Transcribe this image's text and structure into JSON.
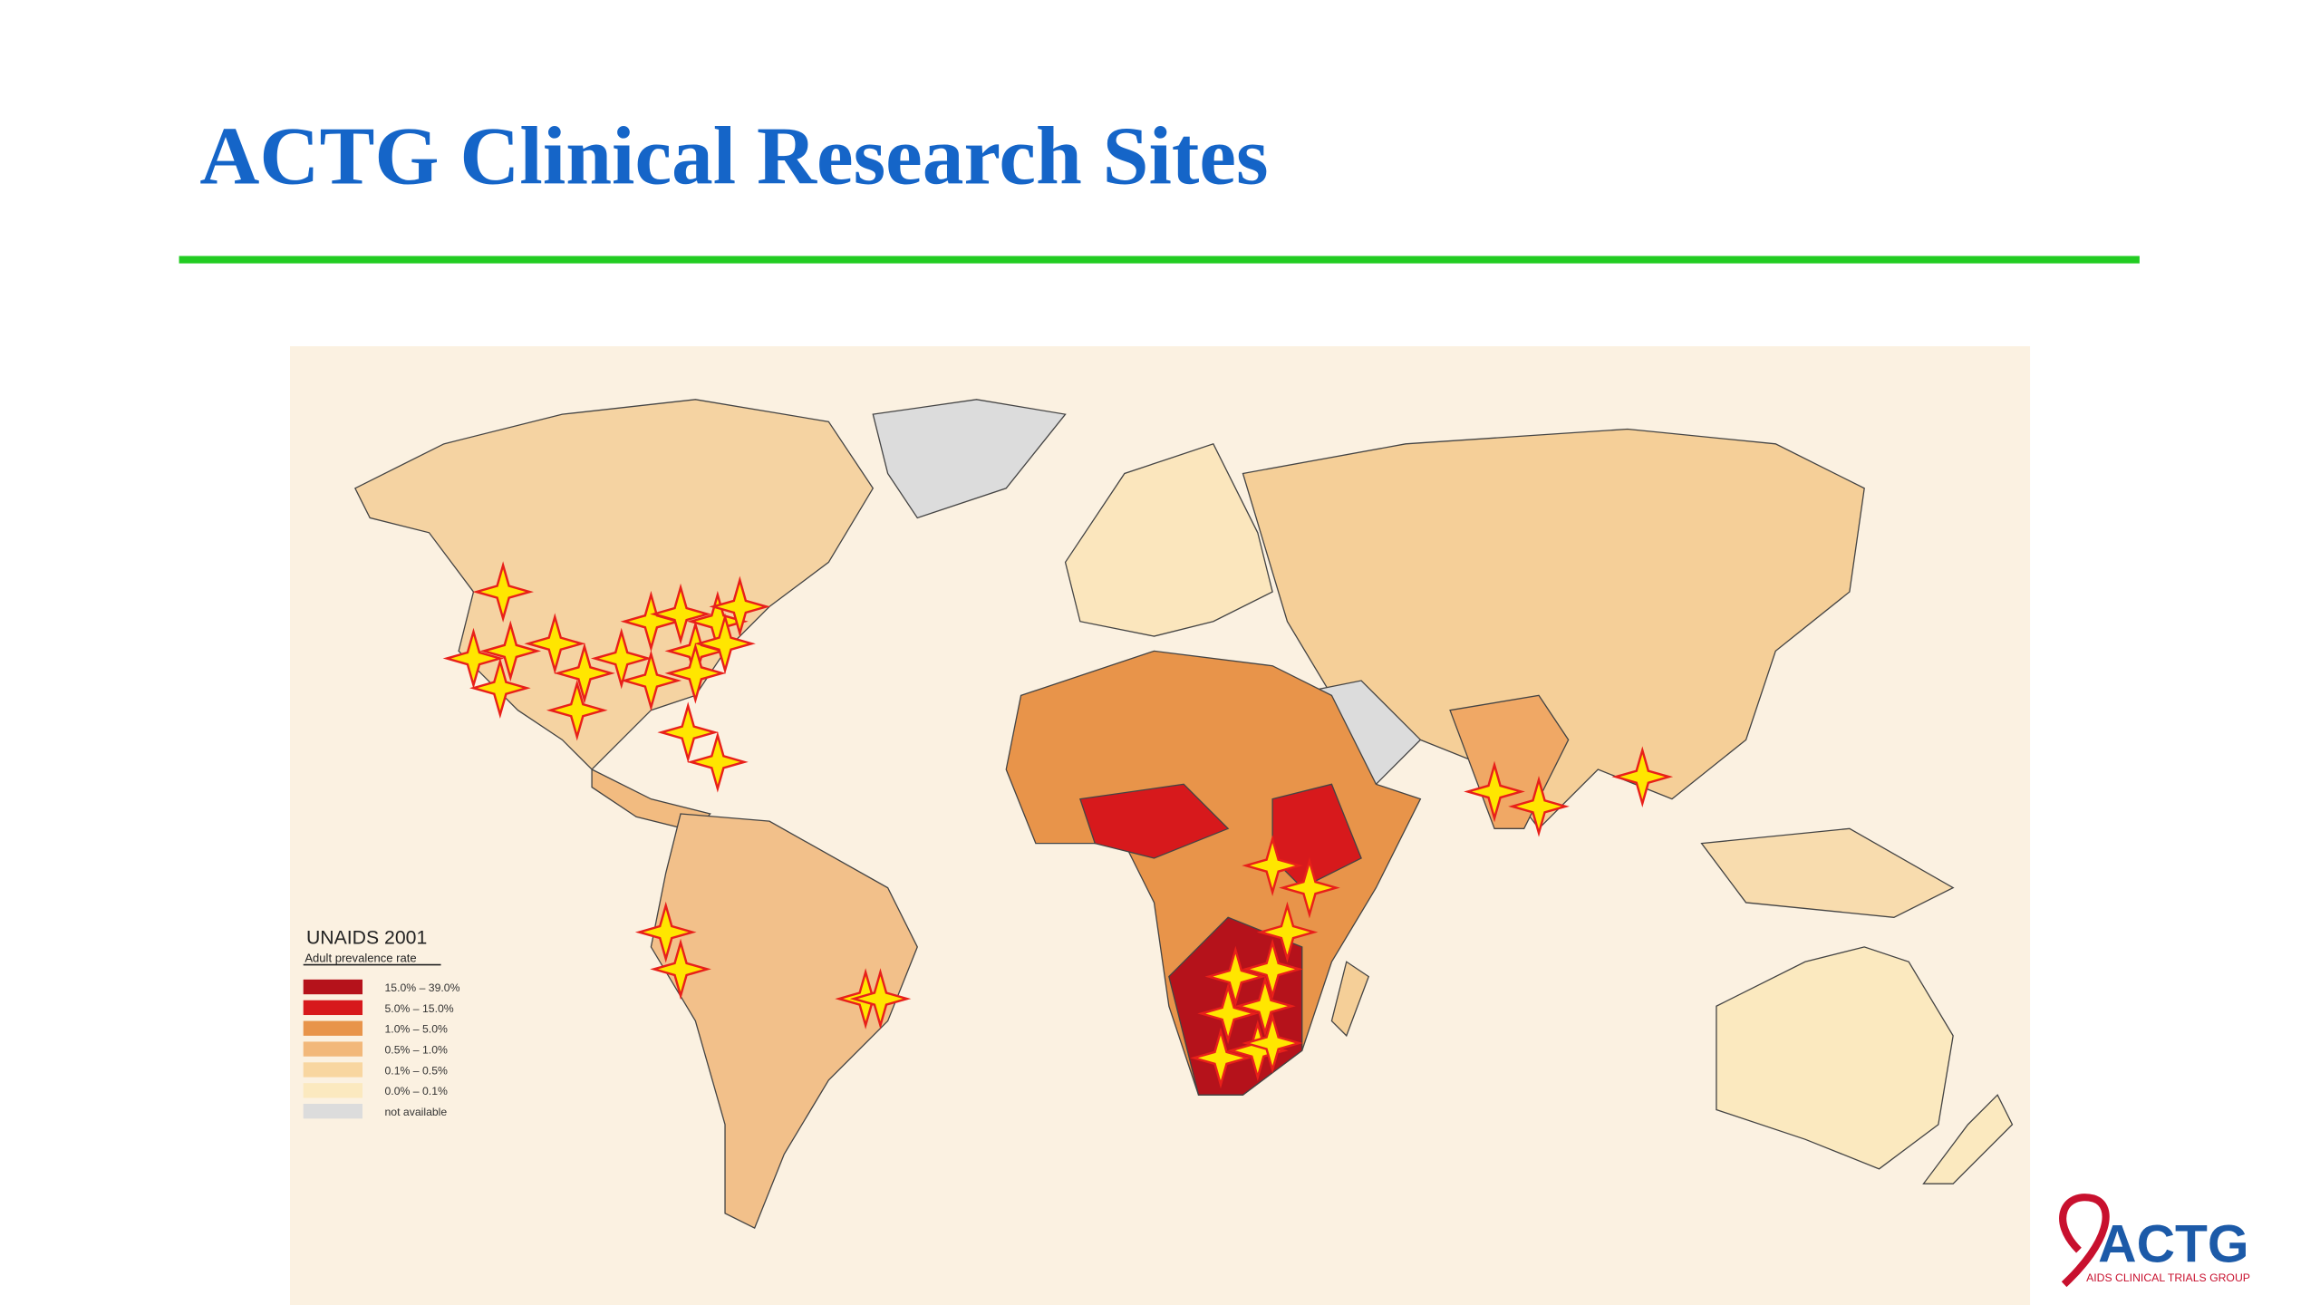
{
  "header": {
    "title": "ACTG Clinical Research Sites"
  },
  "legend": {
    "title": "UNAIDS 2001",
    "subtitle": "Adult prevalence rate",
    "items": [
      "15.0% – 39.0%",
      "5.0% – 15.0%",
      "1.0% – 5.0%",
      "0.5% – 1.0%",
      "0.1% – 0.5%",
      "0.0% – 0.1%",
      "not available"
    ]
  },
  "logo": {
    "name": "ACTG",
    "tagline": "AIDS CLINICAL TRIALS GROUP"
  }
}
